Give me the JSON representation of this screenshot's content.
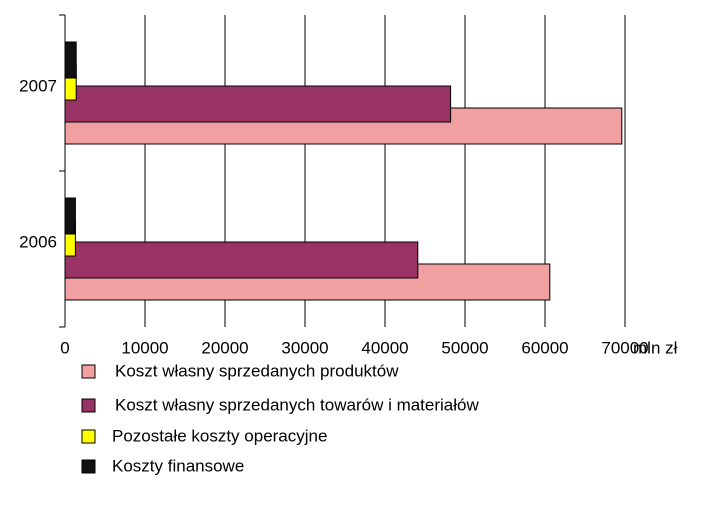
{
  "chart_data": {
    "type": "bar",
    "orientation": "horizontal",
    "categories": [
      "2006",
      "2007"
    ],
    "series": [
      {
        "name": "Koszt własny sprzedanych produktów",
        "color": "#f0a0a0",
        "values": [
          60600,
          69600
        ]
      },
      {
        "name": "Koszt własny sprzedanych towarów i materiałów",
        "color": "#993366",
        "values": [
          44100,
          48200
        ]
      },
      {
        "name": "Pozostałe koszty operacyjne",
        "color": "#ffff00",
        "values": [
          1300,
          1400
        ]
      },
      {
        "name": "Koszty finansowe",
        "color": "#111111",
        "values": [
          1300,
          1400
        ]
      }
    ],
    "xlabel": "mln zł",
    "xlim": [
      0,
      70000
    ],
    "xticks": [
      0,
      10000,
      20000,
      30000,
      40000,
      50000,
      60000,
      70000
    ],
    "grid": true,
    "legend": "bottom"
  }
}
